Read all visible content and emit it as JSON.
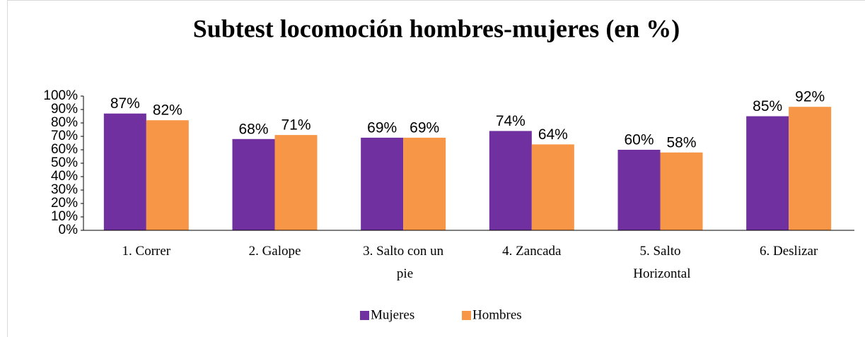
{
  "chart_data": {
    "type": "bar",
    "title": "Subtest locomoción hombres-mujeres (en %)",
    "categories": [
      "1. Correr",
      "2. Galope",
      "3. Salto con un pie",
      "4. Zancada",
      "5. Salto Horizontal",
      "6. Deslizar"
    ],
    "series": [
      {
        "name": "Mujeres",
        "color": "#7030a0",
        "values": [
          87,
          68,
          69,
          74,
          60,
          85
        ],
        "value_labels": [
          "87%",
          "68%",
          "69%",
          "74%",
          "60%",
          "85%"
        ]
      },
      {
        "name": "Hombres",
        "color": "#f79646",
        "values": [
          82,
          71,
          69,
          64,
          58,
          92
        ],
        "value_labels": [
          "82%",
          "71%",
          "69%",
          "64%",
          "58%",
          "92%"
        ]
      }
    ],
    "ylim": [
      0,
      100
    ],
    "yticks": [
      {
        "value": 0,
        "label": "0%"
      },
      {
        "value": 10,
        "label": "10%"
      },
      {
        "value": 20,
        "label": "20%"
      },
      {
        "value": 30,
        "label": "30%"
      },
      {
        "value": 40,
        "label": "40%"
      },
      {
        "value": 50,
        "label": "50%"
      },
      {
        "value": 60,
        "label": "60%"
      },
      {
        "value": 70,
        "label": "70%"
      },
      {
        "value": 80,
        "label": "80%"
      },
      {
        "value": 90,
        "label": "90%"
      },
      {
        "value": 100,
        "label": "100%"
      }
    ],
    "grid": false,
    "legend": "bottom"
  }
}
